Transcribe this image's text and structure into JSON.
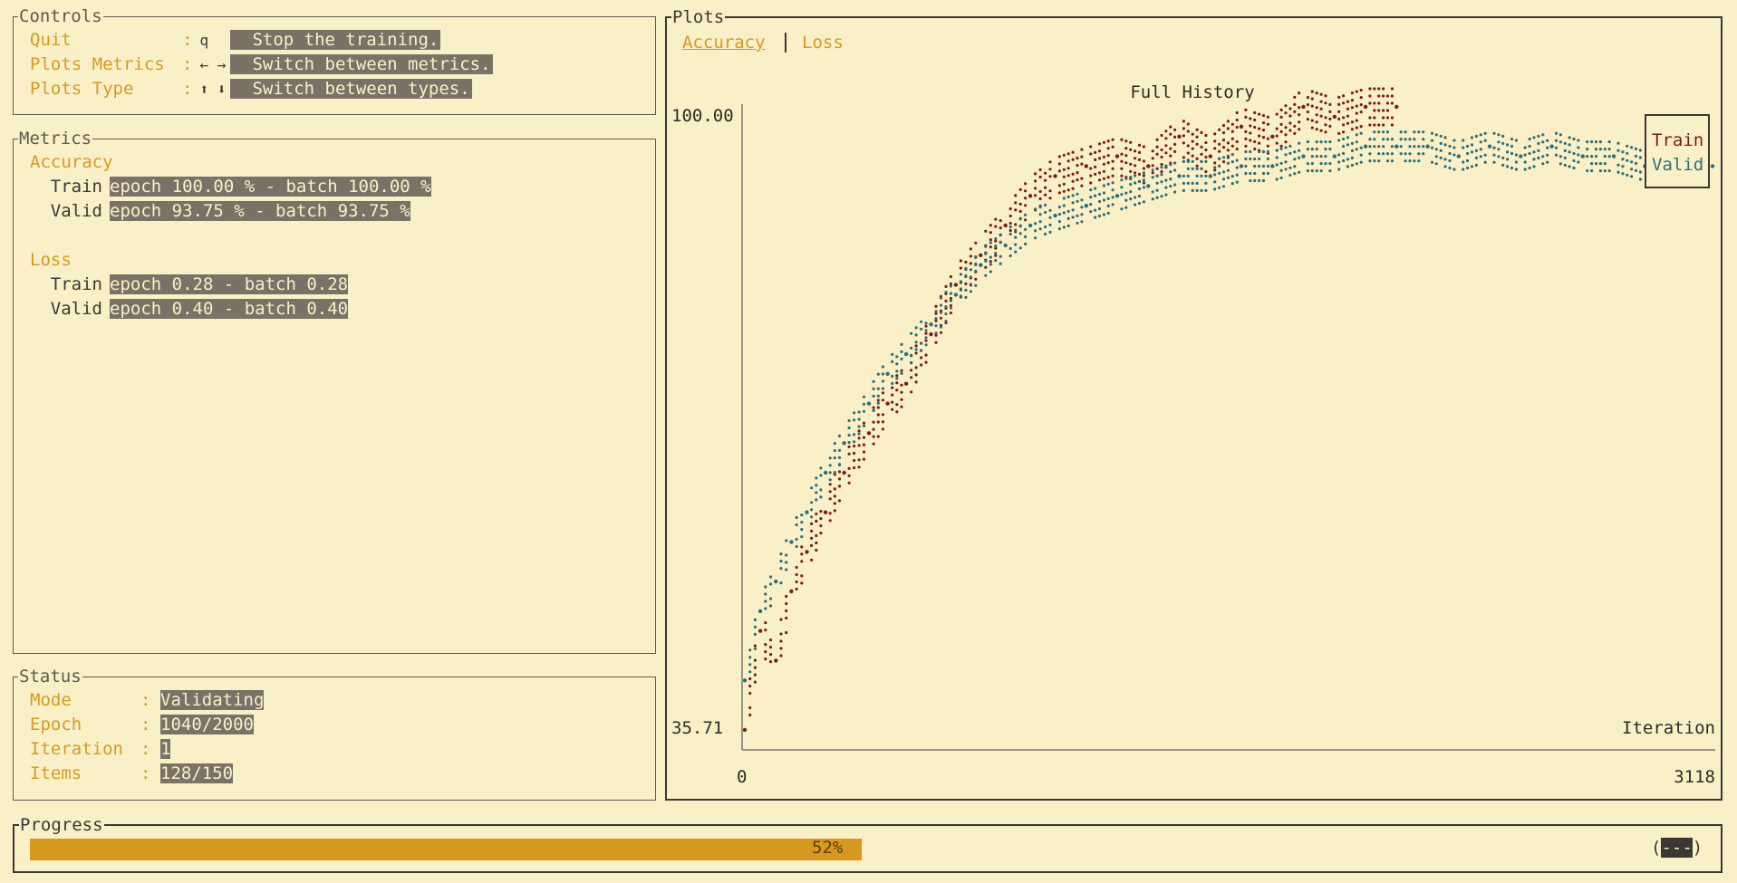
{
  "controls": {
    "title": "Controls",
    "items": [
      {
        "label": "Quit",
        "key": "q",
        "desc": "Stop the training."
      },
      {
        "label": "Plots Metrics",
        "key": "← →",
        "desc": "Switch between metrics."
      },
      {
        "label": "Plots Type",
        "key": "⬆ ⬇",
        "desc": "Switch between types."
      }
    ]
  },
  "metrics": {
    "title": "Metrics",
    "accuracy_label": "Accuracy",
    "loss_label": "Loss",
    "train_label": "Train",
    "valid_label": "Valid",
    "acc_train": "epoch 100.00 % - batch 100.00 %",
    "acc_valid": "epoch 93.75 % - batch 93.75 %",
    "loss_train": "epoch 0.28 - batch 0.28",
    "loss_valid": "epoch 0.40 - batch 0.40"
  },
  "status": {
    "title": "Status",
    "items": [
      {
        "label": "Mode",
        "value": "Validating"
      },
      {
        "label": "Epoch",
        "value": "1040/2000"
      },
      {
        "label": "Iteration",
        "value": "1"
      },
      {
        "label": "Items",
        "value": "128/150"
      }
    ]
  },
  "plots": {
    "title": "Plots",
    "tabs": [
      {
        "label": "Accuracy",
        "active": true
      },
      {
        "label": "Loss",
        "active": false
      }
    ]
  },
  "chart_data": {
    "type": "line",
    "title": "Full History",
    "xlabel": "Iteration",
    "ylabel": "",
    "xlim": [
      0,
      3118
    ],
    "ylim": [
      35.71,
      100.0
    ],
    "x_tick_labels": [
      "0",
      "3118"
    ],
    "y_tick_labels": [
      "100.00",
      "35.71"
    ],
    "legend": "top-right",
    "series": [
      {
        "name": "Train",
        "color": "#7b1d16",
        "x": [
          0,
          50,
          100,
          150,
          200,
          260,
          320,
          400,
          460,
          520,
          600,
          680,
          760,
          840,
          920,
          1000,
          1100,
          1200,
          1300,
          1400,
          1500,
          1600,
          1700,
          1800,
          1900,
          2000,
          2100
        ],
        "y": [
          37,
          47,
          44,
          51,
          55,
          59,
          63,
          67,
          70,
          72,
          77,
          82,
          85,
          88,
          91,
          93,
          94,
          95,
          94,
          97,
          95,
          98,
          97,
          100,
          99,
          100,
          100
        ]
      },
      {
        "name": "Valid",
        "color": "#2f6e78",
        "x": [
          0,
          50,
          100,
          150,
          200,
          260,
          320,
          400,
          460,
          520,
          600,
          680,
          760,
          840,
          920,
          1000,
          1100,
          1200,
          1300,
          1400,
          1500,
          1600,
          1700,
          1800,
          1900,
          2000,
          2100,
          2200,
          2300,
          2400,
          2500,
          2600,
          2700,
          2800,
          2900,
          3000,
          3118
        ],
        "y": [
          42,
          49,
          52,
          56,
          59,
          63,
          66,
          70,
          73,
          75,
          78,
          81,
          84,
          86,
          88,
          89,
          90,
          91,
          92,
          93,
          93,
          94,
          94,
          95,
          95,
          96,
          96,
          96,
          95,
          96,
          95,
          96,
          95,
          95,
          94,
          95,
          94
        ]
      }
    ]
  },
  "progress": {
    "title": "Progress",
    "percent": 52,
    "percent_text": "52%",
    "spinner_open": "(",
    "spinner_mark": "---",
    "spinner_close": ")"
  }
}
